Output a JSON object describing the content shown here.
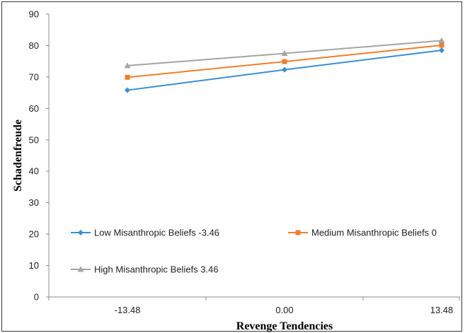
{
  "chart_data": {
    "type": "line",
    "title": "",
    "xlabel": "Revenge Tendencies",
    "ylabel": "Schadenfreude",
    "categories": [
      "-13.48",
      "0.00",
      "13.48"
    ],
    "ylim": [
      0,
      90
    ],
    "yticks": [
      0,
      10,
      20,
      30,
      40,
      50,
      60,
      70,
      80,
      90
    ],
    "grid": false,
    "legend": "inside-lower-left",
    "series": [
      {
        "name": "Low Misanthropic Beliefs -3.46",
        "values": [
          65.8,
          72.3,
          78.5
        ],
        "color": "#3a8fd0",
        "marker": "diamond"
      },
      {
        "name": "Medium Misanthropic Beliefs 0",
        "values": [
          69.9,
          74.9,
          80.1
        ],
        "color": "#ef7f2e",
        "marker": "square"
      },
      {
        "name": "High Misanthropic Beliefs 3.46",
        "values": [
          73.6,
          77.5,
          81.6
        ],
        "color": "#a5a5a5",
        "marker": "triangle"
      }
    ]
  }
}
